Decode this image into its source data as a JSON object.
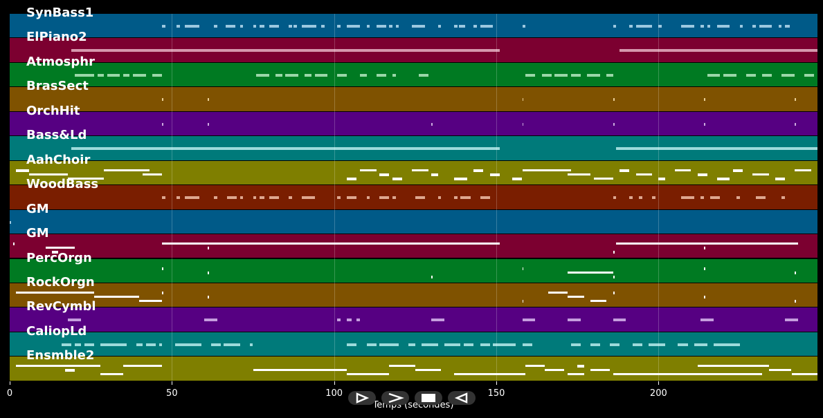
{
  "chart_data": {
    "type": "piano-roll",
    "xlabel": "Temps (secondes)",
    "xlim": [
      0,
      249
    ],
    "xticks": [
      0,
      50,
      100,
      150,
      200
    ],
    "tracks": [
      {
        "name": "SynBass1",
        "color": "#005a88",
        "note_color": "#b7dcf0",
        "segments": [
          [
            47,
            1
          ],
          [
            51.5,
            1
          ],
          [
            54,
            4.5
          ],
          [
            63,
            1
          ],
          [
            66.5,
            3
          ],
          [
            71,
            1
          ],
          [
            75,
            1
          ],
          [
            77,
            1.5
          ],
          [
            80,
            3
          ],
          [
            86,
            1
          ],
          [
            87.5,
            1
          ],
          [
            90,
            4.5
          ],
          [
            96,
            1
          ],
          [
            101,
            1
          ],
          [
            104,
            4
          ],
          [
            110,
            1
          ],
          [
            113,
            3
          ],
          [
            117,
            1
          ],
          [
            119,
            1
          ],
          [
            124,
            4
          ],
          [
            132,
            1
          ],
          [
            137,
            1
          ],
          [
            138.5,
            2
          ],
          [
            143,
            1
          ],
          [
            145,
            4
          ],
          [
            158,
            1
          ],
          [
            186,
            1
          ],
          [
            191,
            1
          ],
          [
            193,
            5
          ],
          [
            200,
            1
          ],
          [
            207,
            4
          ],
          [
            213,
            1
          ],
          [
            215,
            1
          ],
          [
            218,
            4
          ],
          [
            225,
            1
          ],
          [
            229,
            1
          ],
          [
            231,
            4
          ],
          [
            237,
            1
          ],
          [
            239,
            1.5
          ]
        ]
      },
      {
        "name": "ElPiano2",
        "color": "#7c0030",
        "note_color": "#e6b3c3",
        "segments": [
          [
            19,
            132
          ],
          [
            188,
            61
          ]
        ]
      },
      {
        "name": "Atmosphr",
        "color": "#007a22",
        "note_color": "#b5e8c0",
        "segments": [
          [
            20,
            6
          ],
          [
            27,
            2
          ],
          [
            30,
            4
          ],
          [
            35,
            2
          ],
          [
            38,
            4
          ],
          [
            44,
            3
          ],
          [
            76,
            4
          ],
          [
            82,
            2
          ],
          [
            85,
            4
          ],
          [
            91,
            2
          ],
          [
            94,
            4
          ],
          [
            101,
            3
          ],
          [
            108,
            2
          ],
          [
            113,
            3
          ],
          [
            118,
            1
          ],
          [
            126,
            3
          ],
          [
            159,
            3
          ],
          [
            164,
            3
          ],
          [
            168,
            4
          ],
          [
            173,
            3
          ],
          [
            178,
            4
          ],
          [
            184,
            2
          ],
          [
            215,
            4
          ],
          [
            220,
            4
          ],
          [
            227,
            3
          ],
          [
            232,
            3
          ],
          [
            238,
            4
          ],
          [
            245,
            3
          ]
        ]
      },
      {
        "name": "BrasSect",
        "color": "#7f5200",
        "note_color": "#ffe6b0",
        "segments": [
          [
            47,
            0.4
          ],
          [
            61,
            0.4
          ],
          [
            158,
            0.4
          ],
          [
            186,
            0.4
          ],
          [
            214,
            0.4
          ],
          [
            242,
            0.4
          ]
        ]
      },
      {
        "name": "OrchHit",
        "color": "#560082",
        "note_color": "#e0c8f0",
        "segments": [
          [
            47,
            0.4
          ],
          [
            61,
            0.4
          ],
          [
            130,
            0.4
          ],
          [
            158,
            0.4
          ],
          [
            186,
            0.4
          ],
          [
            214,
            0.4
          ],
          [
            242,
            0.4
          ]
        ]
      },
      {
        "name": "Bass&Ld",
        "color": "#007a7a",
        "note_color": "#b8ecec",
        "segments": [
          [
            19,
            132
          ],
          [
            187,
            62
          ]
        ]
      },
      {
        "name": "AahChoir",
        "color": "#7f7f00",
        "note_color": "#ffffff",
        "segments": [
          [
            2,
            4
          ],
          [
            6,
            12
          ],
          [
            18,
            11
          ],
          [
            29,
            14
          ],
          [
            41,
            6
          ],
          [
            104,
            3
          ],
          [
            108,
            5
          ],
          [
            114,
            3
          ],
          [
            118,
            3
          ],
          [
            124,
            5
          ],
          [
            130,
            2
          ],
          [
            137,
            4
          ],
          [
            143,
            3
          ],
          [
            148,
            3
          ],
          [
            155,
            3
          ],
          [
            158,
            15
          ],
          [
            172,
            7
          ],
          [
            180,
            6
          ],
          [
            188,
            3
          ],
          [
            193,
            5
          ],
          [
            200,
            2
          ],
          [
            205,
            5
          ],
          [
            212,
            3
          ],
          [
            218,
            4
          ],
          [
            223,
            3
          ],
          [
            229,
            5
          ],
          [
            236,
            3
          ],
          [
            242,
            5
          ]
        ]
      },
      {
        "name": "WoodBass",
        "color": "#7a1e00",
        "note_color": "#f0c0a8",
        "segments": [
          [
            47,
            1
          ],
          [
            51.5,
            1
          ],
          [
            54,
            4.5
          ],
          [
            63,
            1
          ],
          [
            67,
            3
          ],
          [
            71,
            1
          ],
          [
            75,
            1
          ],
          [
            77,
            1.5
          ],
          [
            80,
            3
          ],
          [
            86,
            1
          ],
          [
            90,
            4
          ],
          [
            101,
            1
          ],
          [
            104,
            3
          ],
          [
            110,
            1
          ],
          [
            114,
            3
          ],
          [
            118,
            1
          ],
          [
            125,
            3
          ],
          [
            132,
            1
          ],
          [
            137,
            1
          ],
          [
            139,
            3
          ],
          [
            145,
            3
          ],
          [
            186,
            1
          ],
          [
            191,
            1
          ],
          [
            194,
            1
          ],
          [
            198,
            1
          ],
          [
            207,
            4
          ],
          [
            213,
            1
          ],
          [
            216,
            3
          ],
          [
            224,
            1
          ],
          [
            230,
            3
          ],
          [
            238,
            1
          ]
        ]
      },
      {
        "name": "GM",
        "color": "#005a88",
        "note_color": "#b7dcf0",
        "segments": [
          [
            0,
            0.5
          ]
        ]
      },
      {
        "name": "GM",
        "color": "#7c0030",
        "note_color": "#ffffff",
        "segments": [
          [
            1,
            0.5
          ],
          [
            11,
            9
          ],
          [
            13,
            2
          ],
          [
            47,
            104
          ],
          [
            61,
            0.5
          ],
          [
            186,
            0.5
          ],
          [
            187,
            56
          ],
          [
            214,
            0.5
          ]
        ]
      },
      {
        "name": "PercOrgn",
        "color": "#007a22",
        "note_color": "#ffffff",
        "segments": [
          [
            47,
            0.4
          ],
          [
            61,
            0.4
          ],
          [
            130,
            0.4
          ],
          [
            158,
            0.4
          ],
          [
            172,
            14
          ],
          [
            186,
            0.4
          ],
          [
            214,
            0.4
          ],
          [
            242,
            0.4
          ]
        ]
      },
      {
        "name": "RockOrgn",
        "color": "#7f5200",
        "note_color": "#ffffff",
        "segments": [
          [
            2,
            24
          ],
          [
            26,
            14
          ],
          [
            40,
            7
          ],
          [
            47,
            0.4
          ],
          [
            61,
            0.4
          ],
          [
            158,
            0.4
          ],
          [
            166,
            6
          ],
          [
            172,
            5
          ],
          [
            179,
            5
          ],
          [
            186,
            0.4
          ],
          [
            214,
            0.4
          ],
          [
            242,
            0.4
          ]
        ]
      },
      {
        "name": "RevCymbl",
        "color": "#560082",
        "note_color": "#d8b8ee",
        "segments": [
          [
            18,
            4
          ],
          [
            60,
            4
          ],
          [
            101,
            1
          ],
          [
            104,
            1.5
          ],
          [
            107,
            1
          ],
          [
            130,
            4
          ],
          [
            158,
            4
          ],
          [
            172,
            4
          ],
          [
            186,
            4
          ],
          [
            213,
            4
          ],
          [
            239,
            4
          ]
        ]
      },
      {
        "name": "CaliopLd",
        "color": "#007a7a",
        "note_color": "#b8ecec",
        "segments": [
          [
            16,
            3
          ],
          [
            20,
            2
          ],
          [
            23,
            3
          ],
          [
            28,
            8
          ],
          [
            39,
            2
          ],
          [
            42,
            3
          ],
          [
            46,
            1
          ],
          [
            51,
            3
          ],
          [
            54,
            5
          ],
          [
            62,
            3
          ],
          [
            66,
            5
          ],
          [
            74,
            1
          ],
          [
            104,
            3
          ],
          [
            110,
            3
          ],
          [
            114,
            6
          ],
          [
            123,
            2
          ],
          [
            127,
            5
          ],
          [
            134,
            5
          ],
          [
            140,
            3
          ],
          [
            145,
            3
          ],
          [
            149,
            3
          ],
          [
            152,
            4
          ],
          [
            158,
            3
          ],
          [
            173,
            3
          ],
          [
            179,
            3
          ],
          [
            185,
            3
          ],
          [
            192,
            3
          ],
          [
            197,
            5
          ],
          [
            206,
            3
          ],
          [
            211,
            3
          ],
          [
            214,
            1
          ],
          [
            217,
            8
          ]
        ]
      },
      {
        "name": "Ensmble2",
        "color": "#7f7f00",
        "note_color": "#ffffff",
        "segments": [
          [
            2,
            26
          ],
          [
            17,
            3
          ],
          [
            28,
            7
          ],
          [
            35,
            12
          ],
          [
            75,
            29
          ],
          [
            104,
            13
          ],
          [
            117,
            8
          ],
          [
            125,
            8
          ],
          [
            137,
            22
          ],
          [
            159,
            6
          ],
          [
            165,
            6
          ],
          [
            172,
            5
          ],
          [
            175,
            2
          ],
          [
            179,
            6
          ],
          [
            186,
            46
          ],
          [
            212,
            22
          ],
          [
            234,
            7
          ],
          [
            241,
            8
          ]
        ]
      }
    ]
  },
  "transport": {
    "prev_icon": "skip-back-icon",
    "play_icon": "play-icon",
    "stop_icon": "stop-icon",
    "rewind_icon": "rewind-icon"
  }
}
